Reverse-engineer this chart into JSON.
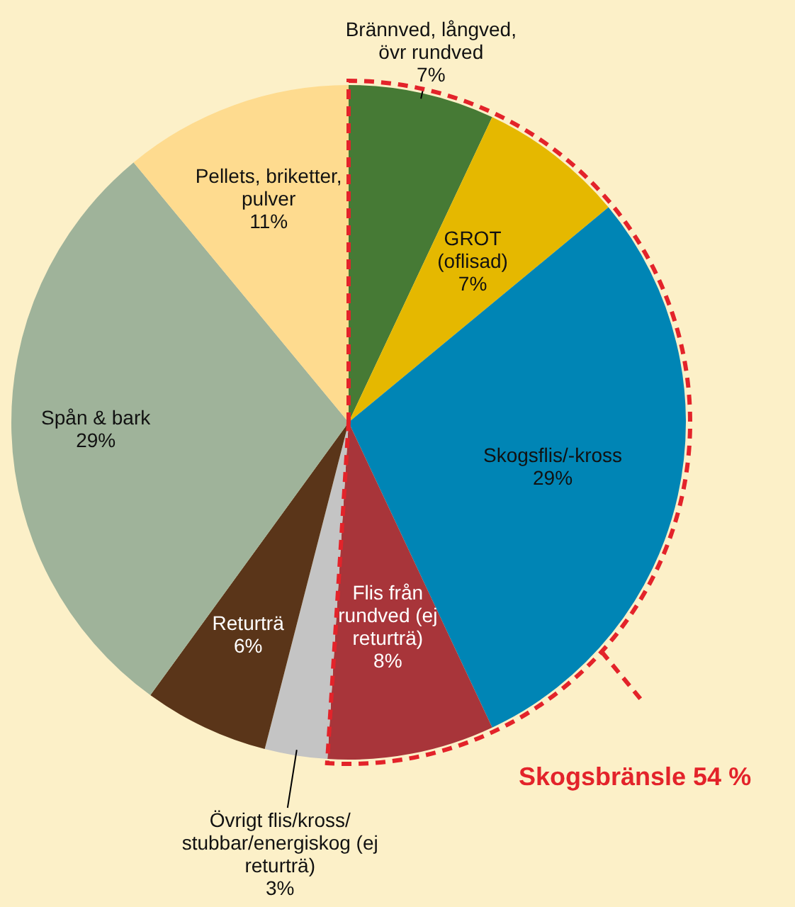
{
  "chart_data": {
    "type": "pie",
    "categories": [
      "Brännved, långved,\növr rundved",
      "GROT\n(oflisad)",
      "Skogsflis/-kross",
      "Flis från\nrundved (ej\nreturträ)",
      "Övrigt flis/kross/\nstubbar/energiskog (ej\nreturträ)",
      "Returträ",
      "Spån & bark",
      "Pellets, briketter,\npulver"
    ],
    "values": [
      7,
      7,
      29,
      8,
      3,
      6,
      29,
      11
    ],
    "colors": [
      "#467a35",
      "#e5b800",
      "#0085b5",
      "#a8353a",
      "#c4c4c4",
      "#5a3519",
      "#9fb39a",
      "#fedb8f"
    ],
    "value_labels": [
      "7%",
      "7%",
      "29%",
      "8%",
      "3%",
      "6%",
      "29%",
      "11%"
    ],
    "annotations": [
      "Skogsbränsle 54 %"
    ],
    "legend": false
  }
}
